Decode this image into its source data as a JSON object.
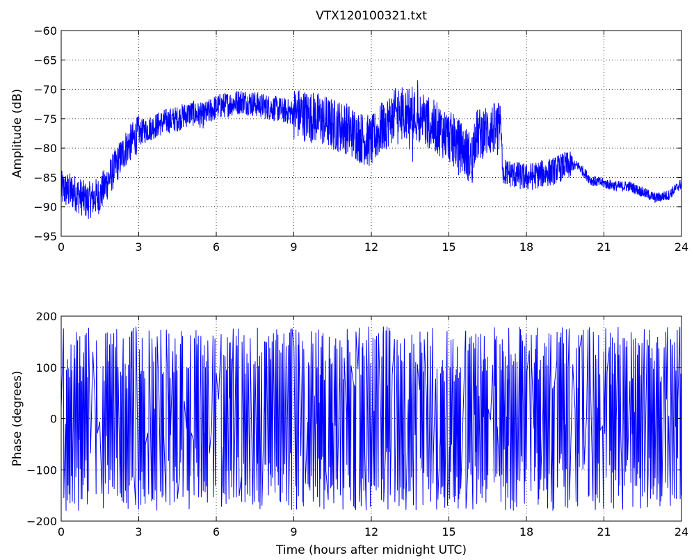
{
  "chart_data": [
    {
      "type": "line",
      "title": "VTX120100321.txt",
      "xlabel": "",
      "ylabel": "Amplitude (dB)",
      "xlim": [
        0,
        24
      ],
      "ylim": [
        -95,
        -60
      ],
      "xticks": [
        0,
        3,
        6,
        9,
        12,
        15,
        18,
        21,
        24
      ],
      "yticks": [
        -95,
        -90,
        -85,
        -80,
        -75,
        -70,
        -65,
        -60
      ],
      "grid": true,
      "color": "#0000ff",
      "series": [
        {
          "x": [
            0,
            0.5,
            1.0,
            1.5,
            2.0,
            2.5,
            3.0,
            3.5,
            4.0,
            4.5,
            5.0,
            5.5,
            6.0,
            6.5,
            7.0,
            7.5,
            8.0,
            8.5,
            9.0,
            9.5,
            10.0,
            10.5,
            11.0,
            11.5,
            12.0,
            12.5,
            13.0,
            13.5,
            14.0,
            14.5,
            15.0,
            15.5,
            15.9,
            16.0,
            16.5,
            17.0,
            17.1,
            17.5,
            18.0,
            18.5,
            19.0,
            19.5,
            20.0,
            20.5,
            21.0,
            21.5,
            22.0,
            22.5,
            23.0,
            23.5,
            24.0
          ],
          "y": [
            -87,
            -87.5,
            -89,
            -88,
            -84,
            -80,
            -77.5,
            -76.5,
            -75.5,
            -75,
            -74,
            -74.5,
            -73,
            -72.5,
            -72,
            -72.5,
            -73,
            -73.5,
            -74,
            -74.5,
            -75,
            -76,
            -76.5,
            -78,
            -79,
            -76,
            -74,
            -74,
            -75,
            -76.5,
            -78,
            -80,
            -82,
            -78,
            -77,
            -76.5,
            -84,
            -84.5,
            -85,
            -84.5,
            -84,
            -83,
            -83,
            -85.5,
            -86,
            -86.5,
            -86.5,
            -87.5,
            -88.5,
            -88,
            -86
          ]
        }
      ]
    },
    {
      "type": "line",
      "title": "",
      "xlabel": "Time (hours after midnight UTC)",
      "ylabel": "Phase (degrees)",
      "xlim": [
        0,
        24
      ],
      "ylim": [
        -200,
        200
      ],
      "xticks": [
        0,
        3,
        6,
        9,
        12,
        15,
        18,
        21,
        24
      ],
      "yticks": [
        -200,
        -100,
        0,
        100,
        200
      ],
      "grid": true,
      "color": "#0000ff",
      "series": [
        {
          "x": [
            0,
            24
          ],
          "y_range": [
            -180,
            180
          ],
          "note_wrapped": true
        }
      ]
    }
  ]
}
